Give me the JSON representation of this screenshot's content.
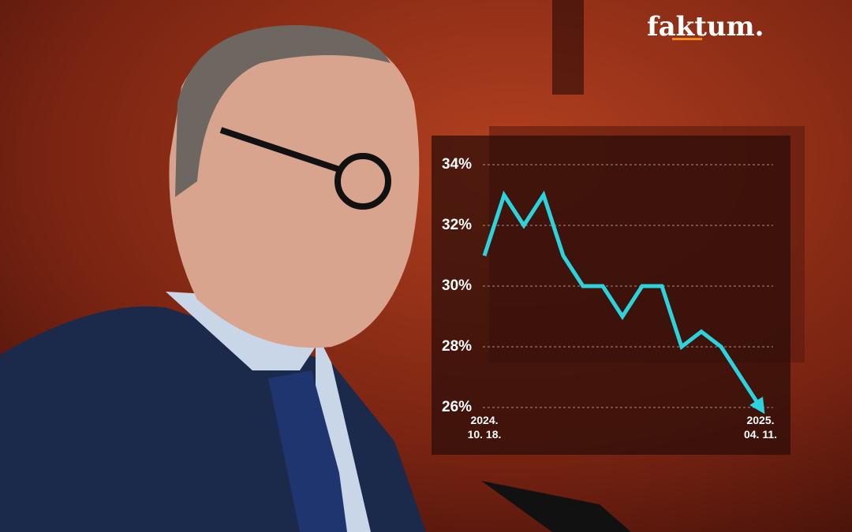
{
  "logo": "faktum.",
  "chart_data": {
    "type": "line",
    "categories": [
      "2024.\n10. 18.",
      null,
      null,
      null,
      null,
      null,
      null,
      null,
      null,
      null,
      null,
      null,
      null,
      null,
      "2025.\n04. 11."
    ],
    "values": [
      31,
      33,
      32,
      33,
      31,
      30,
      30,
      29,
      30,
      30,
      28,
      28.5,
      28,
      27,
      26
    ],
    "color": "#2cd3dc",
    "ylim": [
      26,
      34
    ],
    "yticks": [
      {
        "value": 26,
        "label": "26%"
      },
      {
        "value": 28,
        "label": "28%"
      },
      {
        "value": 30,
        "label": "30%"
      },
      {
        "value": 32,
        "label": "32%"
      },
      {
        "value": 34,
        "label": "34%"
      }
    ],
    "grid": true
  }
}
